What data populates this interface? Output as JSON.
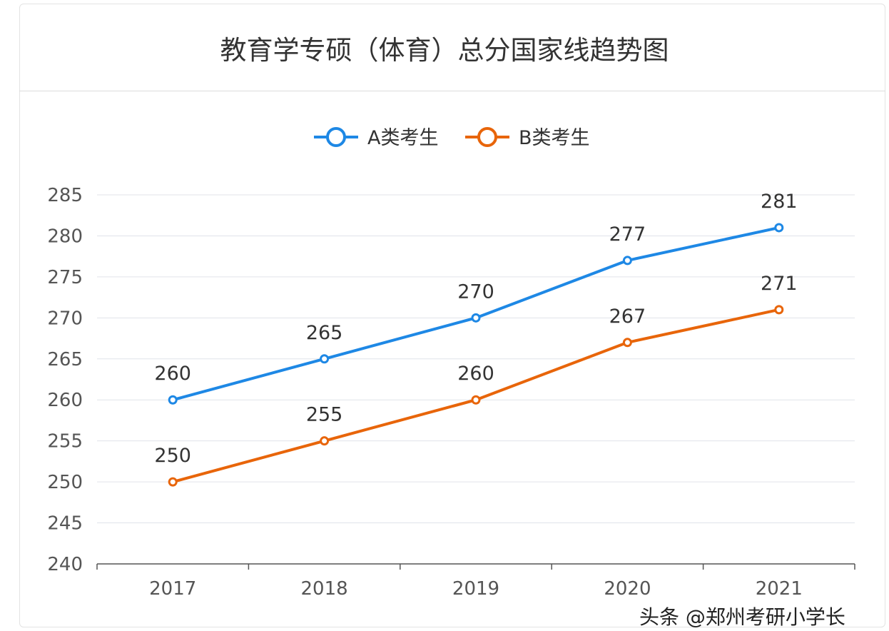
{
  "chart_data": {
    "type": "line",
    "title": "教育学专硕（体育）总分国家线趋势图",
    "categories": [
      "2017",
      "2018",
      "2019",
      "2020",
      "2021"
    ],
    "series": [
      {
        "name": "A类考生",
        "values": [
          260,
          265,
          270,
          277,
          281
        ],
        "color": "#1e88e5"
      },
      {
        "name": "B类考生",
        "values": [
          250,
          255,
          260,
          267,
          271
        ],
        "color": "#e8650a"
      }
    ],
    "yticks": [
      240,
      245,
      250,
      255,
      260,
      265,
      270,
      275,
      280,
      285
    ],
    "ylim": [
      240,
      285
    ],
    "xlabel": "",
    "ylabel": "",
    "grid": true,
    "legend": "top-center",
    "data_labels": true
  },
  "watermark": "头条 @郑州考研小学长"
}
